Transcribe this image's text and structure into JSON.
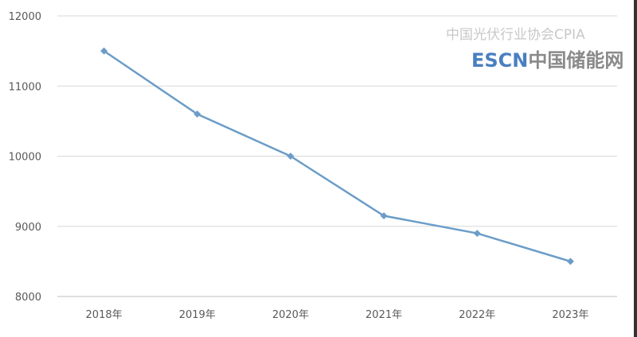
{
  "chart_data": {
    "type": "line",
    "categories": [
      "2018年",
      "2019年",
      "2020年",
      "2021年",
      "2022年",
      "2023年"
    ],
    "series": [
      {
        "values": [
          11500,
          10600,
          10000,
          9150,
          8900,
          8500
        ],
        "color": "#6b9dc8",
        "marker": "diamond"
      }
    ],
    "ylim": [
      8000,
      12000
    ],
    "yticks": [
      8000,
      9000,
      10000,
      11000,
      12000
    ],
    "grid": true,
    "title": "",
    "xlabel": "",
    "ylabel": ""
  },
  "watermarks": {
    "cpia": "中国光伏行业协会CPIA",
    "escn_latin": "ESCN",
    "escn_cn": "中国储能网"
  }
}
